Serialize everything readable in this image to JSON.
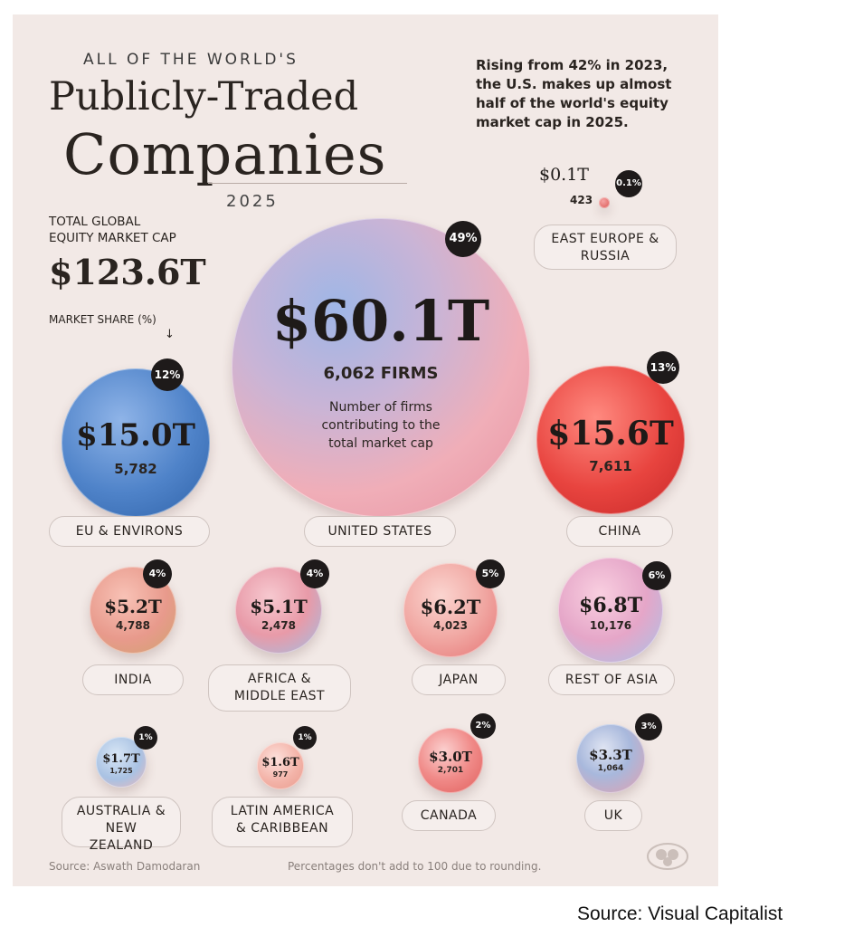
{
  "kicker": "ALL OF THE WORLD'S",
  "title_line1": "Publicly-Traded",
  "title_line2": "Companies",
  "year": "2025",
  "note": "Rising from 42% in 2023, the U.S. makes up almost half of the world's equity market cap in 2025.",
  "total_label": "TOTAL GLOBAL EQUITY MARKET CAP",
  "total_value": "$123.6T",
  "market_share_label": "MARKET SHARE (%)",
  "arrow_glyph": "↓",
  "firms_label": "6,062 FIRMS",
  "firms_note": "Number of firms contributing to the total market cap",
  "source_left": "Source: Aswath Damodaran",
  "source_note": "Percentages don't add to 100 due to rounding.",
  "credit": "Source: Visual Capitalist",
  "icons": {
    "logo": "visual-capitalist-logo-icon"
  },
  "colors": {
    "background": "#f2e9e6",
    "badge": "#1e1a1a",
    "us": "#e89aa8",
    "china": "#e8443f",
    "eu": "#4a7fc4"
  },
  "chart_data": {
    "type": "bubble",
    "title": "Publicly-Traded Companies",
    "subtitle": "2025",
    "unit": "USD trillions",
    "total_market_cap_trillions": 123.6,
    "regions": [
      {
        "name": "UNITED STATES",
        "market_cap_label": "$60.1T",
        "market_cap": 60.1,
        "firms_label": "6,062",
        "firms": 6062,
        "share_label": "49%",
        "share": 49
      },
      {
        "name": "EU & ENVIRONS",
        "market_cap_label": "$15.0T",
        "market_cap": 15.0,
        "firms_label": "5,782",
        "firms": 5782,
        "share_label": "12%",
        "share": 12
      },
      {
        "name": "CHINA",
        "market_cap_label": "$15.6T",
        "market_cap": 15.6,
        "firms_label": "7,611",
        "firms": 7611,
        "share_label": "13%",
        "share": 13
      },
      {
        "name": "EAST EUROPE & RUSSIA",
        "market_cap_label": "$0.1T",
        "market_cap": 0.1,
        "firms_label": "423",
        "firms": 423,
        "share_label": "0.1%",
        "share": 0.1
      },
      {
        "name": "INDIA",
        "market_cap_label": "$5.2T",
        "market_cap": 5.2,
        "firms_label": "4,788",
        "firms": 4788,
        "share_label": "4%",
        "share": 4
      },
      {
        "name": "AFRICA & MIDDLE EAST",
        "market_cap_label": "$5.1T",
        "market_cap": 5.1,
        "firms_label": "2,478",
        "firms": 2478,
        "share_label": "4%",
        "share": 4
      },
      {
        "name": "JAPAN",
        "market_cap_label": "$6.2T",
        "market_cap": 6.2,
        "firms_label": "4,023",
        "firms": 4023,
        "share_label": "5%",
        "share": 5
      },
      {
        "name": "REST OF ASIA",
        "market_cap_label": "$6.8T",
        "market_cap": 6.8,
        "firms_label": "10,176",
        "firms": 10176,
        "share_label": "6%",
        "share": 6
      },
      {
        "name": "AUSTRALIA & NEW ZEALAND",
        "market_cap_label": "$1.7T",
        "market_cap": 1.7,
        "firms_label": "1,725",
        "firms": 1725,
        "share_label": "1%",
        "share": 1
      },
      {
        "name": "LATIN AMERICA & CARIBBEAN",
        "market_cap_label": "$1.6T",
        "market_cap": 1.6,
        "firms_label": "977",
        "firms": 977,
        "share_label": "1%",
        "share": 1
      },
      {
        "name": "CANADA",
        "market_cap_label": "$3.0T",
        "market_cap": 3.0,
        "firms_label": "2,701",
        "firms": 2701,
        "share_label": "2%",
        "share": 2
      },
      {
        "name": "UK",
        "market_cap_label": "$3.3T",
        "market_cap": 3.3,
        "firms_label": "1,064",
        "firms": 1064,
        "share_label": "3%",
        "share": 3
      }
    ]
  }
}
